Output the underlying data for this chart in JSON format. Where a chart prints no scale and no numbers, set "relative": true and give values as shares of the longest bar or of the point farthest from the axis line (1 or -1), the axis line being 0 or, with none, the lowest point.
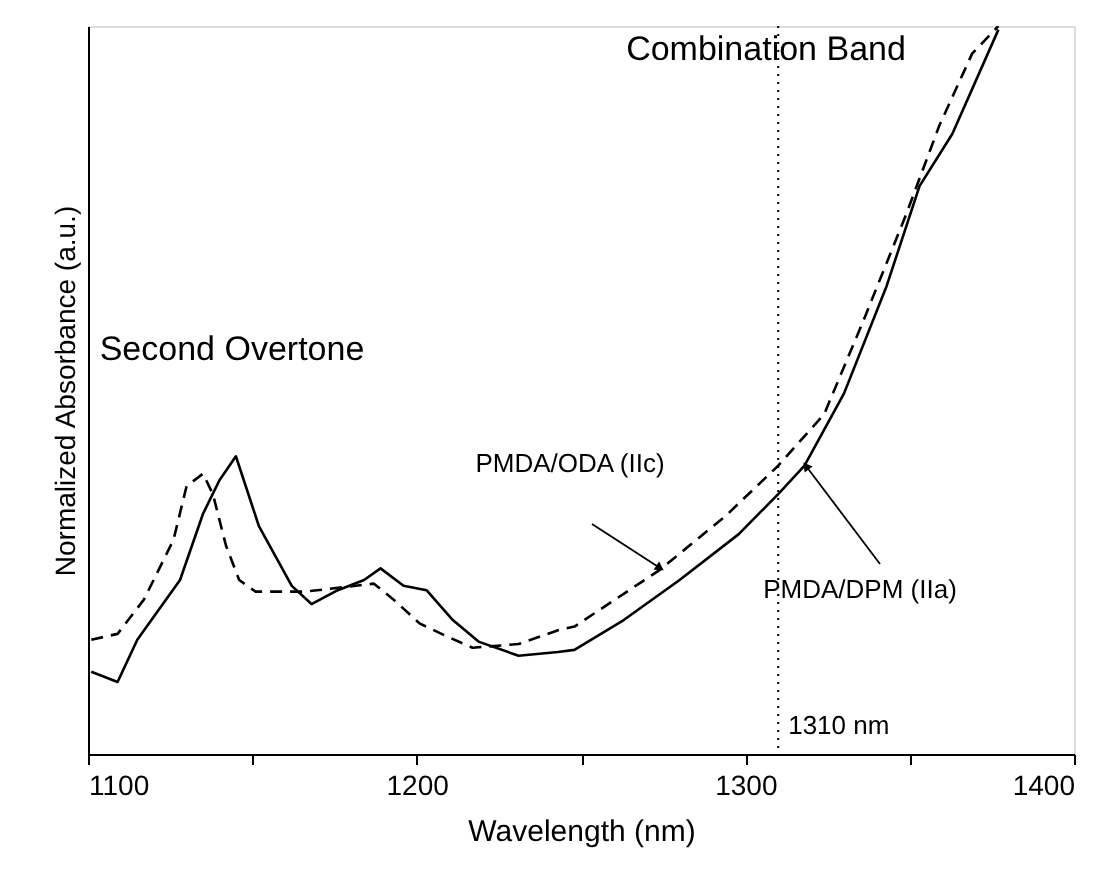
{
  "chart_data": {
    "type": "line",
    "relative": true,
    "xlabel": "Wavelength (nm)",
    "ylabel": "Normalized Absorbance (a.u.)",
    "xlim": [
      1100,
      1400
    ],
    "xticks": [
      1100,
      {
        "value": 1150,
        "label": null
      },
      1200,
      {
        "value": 1250,
        "label": null
      },
      1300,
      {
        "value": 1350,
        "label": null
      },
      1400
    ],
    "grid": false,
    "marker": "none",
    "series": [
      {
        "name": "PMDA/ODA (IIc)",
        "color": "#000000",
        "line_style": "dashed",
        "x": [
          1101,
          1109,
          1117,
          1126,
          1130,
          1135,
          1138,
          1142,
          1146,
          1151,
          1166,
          1187,
          1193,
          1201,
          1209,
          1217,
          1231,
          1243,
          1248,
          1274,
          1294,
          1310,
          1324,
          1336,
          1349,
          1359,
          1369,
          1377
        ],
        "values": [
          0.157,
          0.165,
          0.212,
          0.294,
          0.368,
          0.385,
          0.357,
          0.286,
          0.239,
          0.223,
          0.223,
          0.234,
          0.212,
          0.179,
          0.162,
          0.146,
          0.151,
          0.17,
          0.175,
          0.253,
          0.327,
          0.396,
          0.467,
          0.596,
          0.742,
          0.863,
          0.962,
          1.0
        ]
      },
      {
        "name": "PMDA/DPM (IIa)",
        "color": "#000000",
        "line_style": "solid",
        "x": [
          1101,
          1109,
          1115,
          1128,
          1135,
          1140,
          1145,
          1152,
          1162,
          1168,
          1176,
          1184,
          1189,
          1196,
          1203,
          1211,
          1219,
          1231,
          1243,
          1248,
          1263,
          1280,
          1298,
          1310,
          1318,
          1330,
          1343,
          1353,
          1363,
          1377
        ],
        "values": [
          0.113,
          0.099,
          0.157,
          0.239,
          0.33,
          0.376,
          0.409,
          0.313,
          0.231,
          0.206,
          0.225,
          0.239,
          0.255,
          0.231,
          0.225,
          0.184,
          0.154,
          0.135,
          0.14,
          0.143,
          0.184,
          0.239,
          0.302,
          0.357,
          0.396,
          0.495,
          0.643,
          0.78,
          0.852,
          0.995
        ]
      }
    ],
    "ref_lines": [
      {
        "axis": "x",
        "value": 1310,
        "label": "1310 nm",
        "line_style": "dotted",
        "color": "#000000"
      }
    ],
    "annotations": [
      "Second Overtone",
      "Combination Band"
    ]
  }
}
